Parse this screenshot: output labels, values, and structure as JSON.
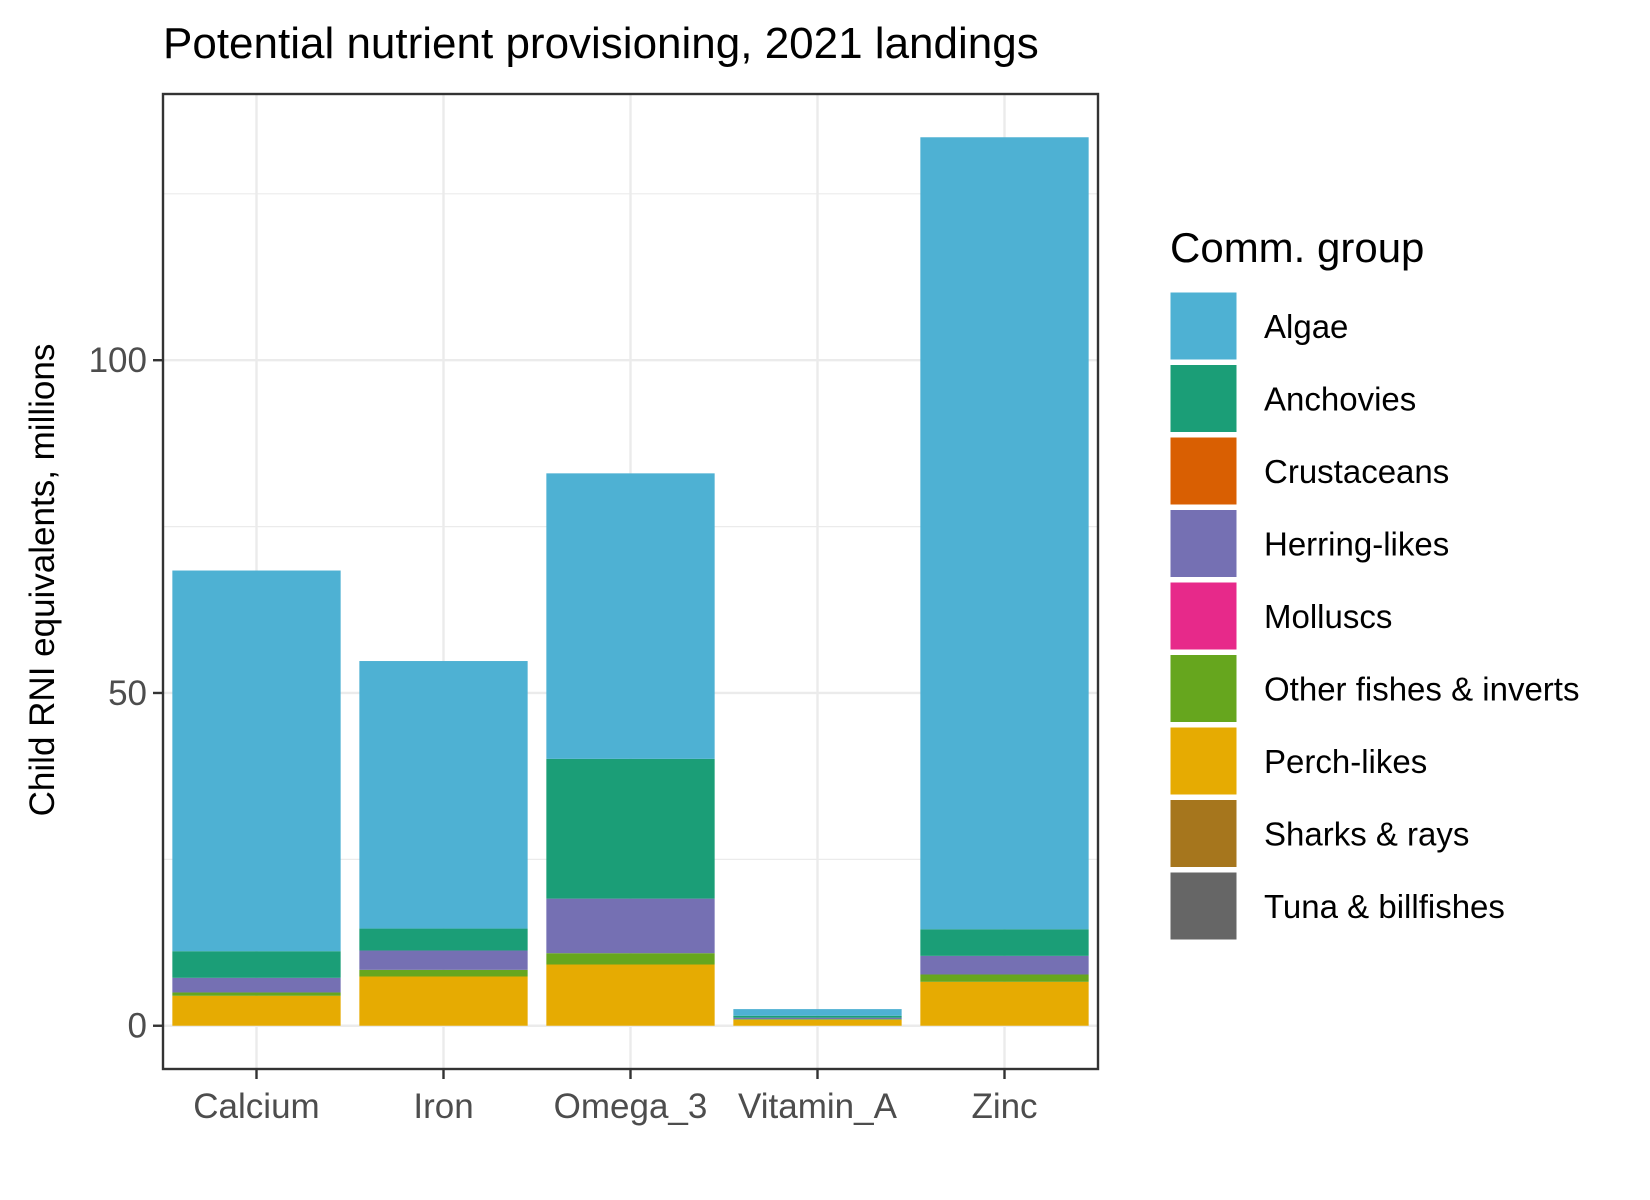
{
  "chart_data": {
    "type": "bar",
    "stacked": true,
    "title": "Potential nutrient provisioning, 2021 landings",
    "xlabel": "",
    "ylabel": "Child RNI equivalents, millions",
    "ylim": [
      -6.5,
      140
    ],
    "yticks": [
      0,
      50,
      100
    ],
    "grid": true,
    "legend_position": "right",
    "legend_title": "Comm. group",
    "categories": [
      "Calcium",
      "Iron",
      "Omega_3",
      "Vitamin_A",
      "Zinc"
    ],
    "series": [
      {
        "name": "Algae",
        "color": "#4EB1D3",
        "values": [
          57.2,
          40.2,
          42.9,
          1.0,
          119.0
        ]
      },
      {
        "name": "Anchovies",
        "color": "#1B9E77",
        "values": [
          4.0,
          3.3,
          21.0,
          0.3,
          4.0
        ]
      },
      {
        "name": "Crustaceans",
        "color": "#D95F02",
        "values": [
          0.0,
          0.0,
          0.0,
          0.0,
          0.0
        ]
      },
      {
        "name": "Herring-likes",
        "color": "#7570B3",
        "values": [
          2.2,
          2.9,
          8.2,
          0.2,
          2.8
        ]
      },
      {
        "name": "Molluscs",
        "color": "#E7298A",
        "values": [
          0.0,
          0.0,
          0.0,
          0.0,
          0.0
        ]
      },
      {
        "name": "Other fishes & inverts",
        "color": "#66A61E",
        "values": [
          0.5,
          1.0,
          1.7,
          0.1,
          1.1
        ]
      },
      {
        "name": "Perch-likes",
        "color": "#E6AB02",
        "values": [
          4.5,
          7.4,
          9.2,
          0.9,
          6.6
        ]
      },
      {
        "name": "Sharks & rays",
        "color": "#A6761D",
        "values": [
          0.0,
          0.0,
          0.0,
          0.0,
          0.0
        ]
      },
      {
        "name": "Tuna & billfishes",
        "color": "#666666",
        "values": [
          0.0,
          0.0,
          0.0,
          0.0,
          0.0
        ]
      }
    ]
  }
}
